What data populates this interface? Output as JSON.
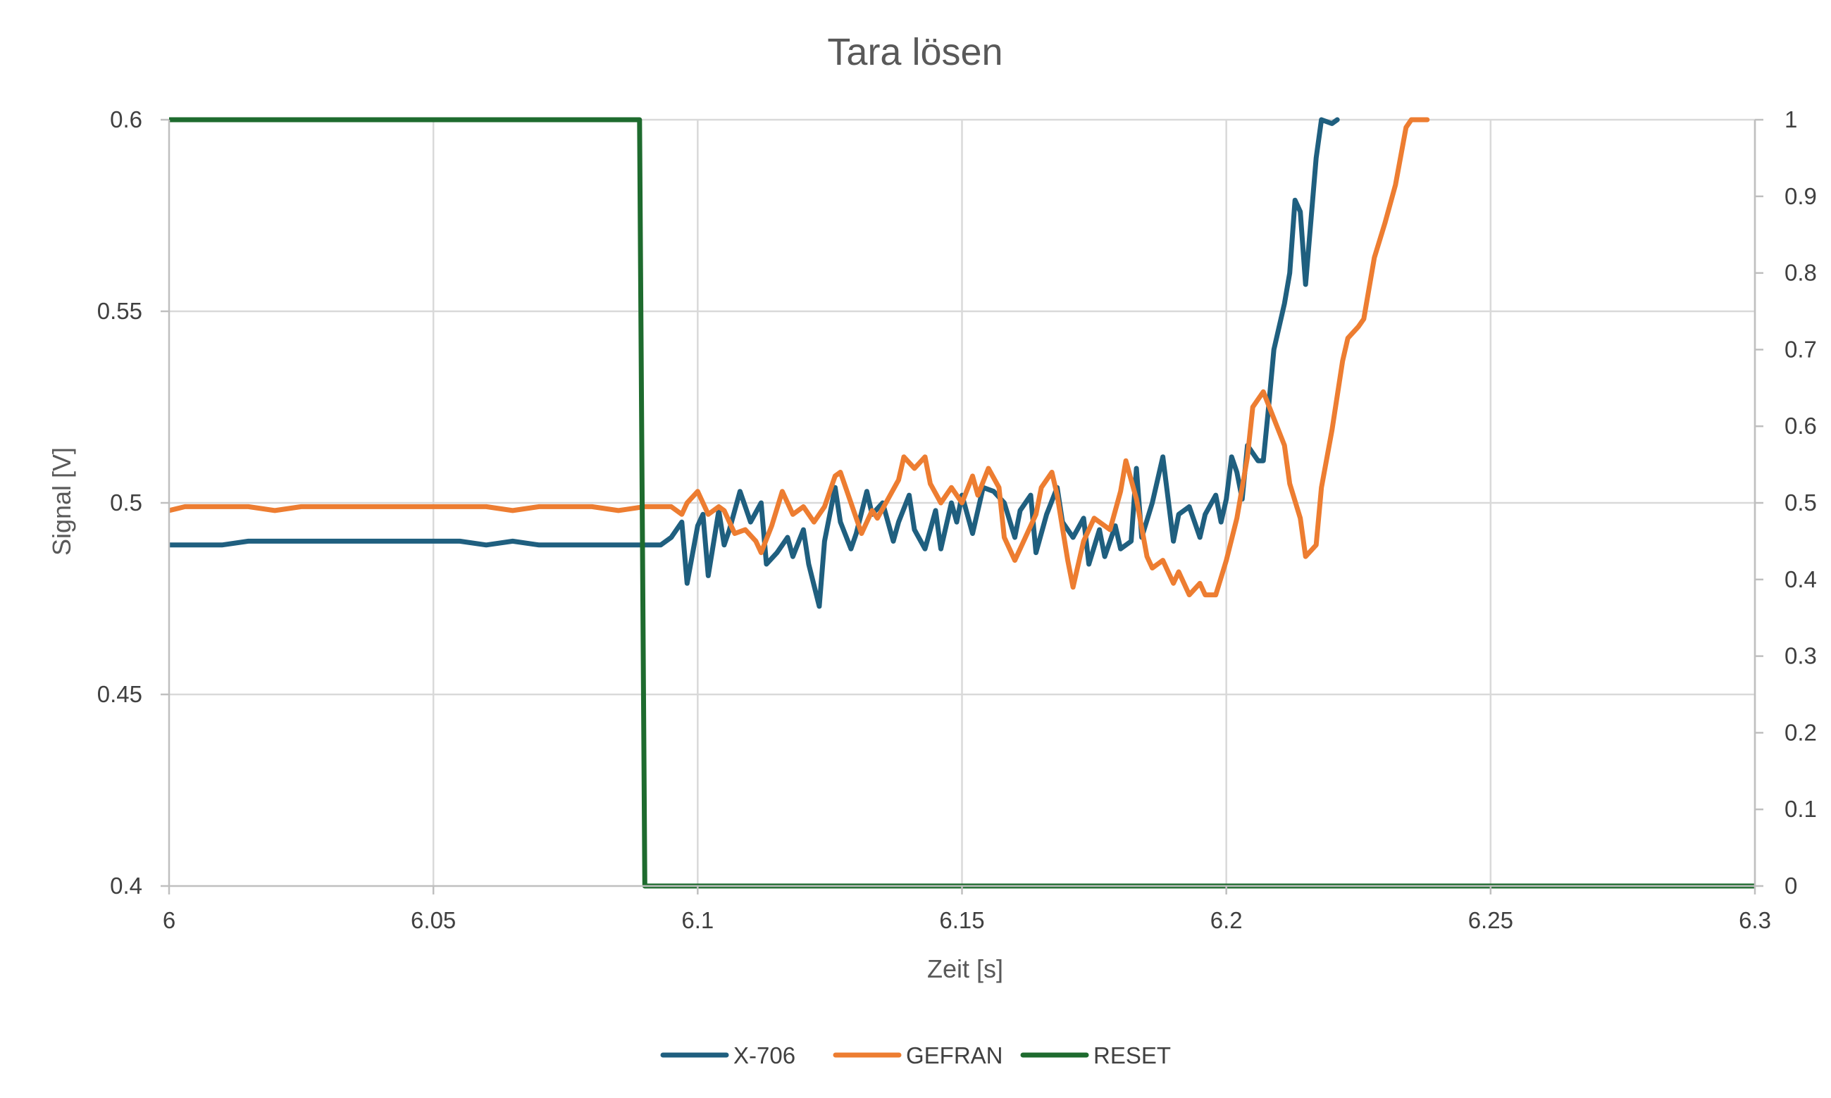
{
  "chart_data": {
    "type": "line",
    "title": "Tara lösen",
    "xlabel": "Zeit [s]",
    "ylabel": "Signal [V]",
    "y2label": "",
    "xlim": [
      6,
      6.3
    ],
    "ylim": [
      0.4,
      0.6
    ],
    "y2lim": [
      0,
      1
    ],
    "x_ticks": [
      "6",
      "6.05",
      "6.1",
      "6.15",
      "6.2",
      "6.25",
      "6.3"
    ],
    "y_ticks": [
      "0.4",
      "0.45",
      "0.5",
      "0.55",
      "0.6"
    ],
    "y2_ticks": [
      "0",
      "0.1",
      "0.2",
      "0.3",
      "0.4",
      "0.5",
      "0.6",
      "0.7",
      "0.8",
      "0.9",
      "1"
    ],
    "grid": true,
    "legend_position": "bottom",
    "series": [
      {
        "name": "X-706",
        "axis": "left",
        "color": "#1f5f7f",
        "points": [
          [
            6.0,
            0.489
          ],
          [
            6.005,
            0.489
          ],
          [
            6.01,
            0.489
          ],
          [
            6.015,
            0.49
          ],
          [
            6.02,
            0.49
          ],
          [
            6.025,
            0.49
          ],
          [
            6.03,
            0.49
          ],
          [
            6.035,
            0.49
          ],
          [
            6.04,
            0.49
          ],
          [
            6.045,
            0.49
          ],
          [
            6.05,
            0.49
          ],
          [
            6.055,
            0.49
          ],
          [
            6.06,
            0.489
          ],
          [
            6.065,
            0.49
          ],
          [
            6.07,
            0.489
          ],
          [
            6.075,
            0.489
          ],
          [
            6.08,
            0.489
          ],
          [
            6.085,
            0.489
          ],
          [
            6.09,
            0.489
          ],
          [
            6.093,
            0.489
          ],
          [
            6.095,
            0.491
          ],
          [
            6.097,
            0.495
          ],
          [
            6.098,
            0.479
          ],
          [
            6.1,
            0.494
          ],
          [
            6.101,
            0.497
          ],
          [
            6.102,
            0.481
          ],
          [
            6.104,
            0.498
          ],
          [
            6.105,
            0.489
          ],
          [
            6.106,
            0.493
          ],
          [
            6.108,
            0.503
          ],
          [
            6.11,
            0.495
          ],
          [
            6.112,
            0.5
          ],
          [
            6.113,
            0.484
          ],
          [
            6.115,
            0.487
          ],
          [
            6.117,
            0.491
          ],
          [
            6.118,
            0.486
          ],
          [
            6.12,
            0.493
          ],
          [
            6.121,
            0.484
          ],
          [
            6.123,
            0.473
          ],
          [
            6.124,
            0.49
          ],
          [
            6.126,
            0.504
          ],
          [
            6.127,
            0.495
          ],
          [
            6.129,
            0.488
          ],
          [
            6.13,
            0.492
          ],
          [
            6.132,
            0.503
          ],
          [
            6.133,
            0.497
          ],
          [
            6.135,
            0.5
          ],
          [
            6.137,
            0.49
          ],
          [
            6.138,
            0.495
          ],
          [
            6.14,
            0.502
          ],
          [
            6.141,
            0.493
          ],
          [
            6.143,
            0.488
          ],
          [
            6.145,
            0.498
          ],
          [
            6.146,
            0.488
          ],
          [
            6.148,
            0.5
          ],
          [
            6.149,
            0.495
          ],
          [
            6.15,
            0.502
          ],
          [
            6.152,
            0.492
          ],
          [
            6.154,
            0.504
          ],
          [
            6.156,
            0.503
          ],
          [
            6.158,
            0.5
          ],
          [
            6.16,
            0.491
          ],
          [
            6.161,
            0.498
          ],
          [
            6.163,
            0.502
          ],
          [
            6.164,
            0.487
          ],
          [
            6.166,
            0.497
          ],
          [
            6.168,
            0.504
          ],
          [
            6.169,
            0.495
          ],
          [
            6.171,
            0.491
          ],
          [
            6.173,
            0.496
          ],
          [
            6.174,
            0.484
          ],
          [
            6.176,
            0.493
          ],
          [
            6.177,
            0.486
          ],
          [
            6.179,
            0.494
          ],
          [
            6.18,
            0.488
          ],
          [
            6.182,
            0.49
          ],
          [
            6.183,
            0.509
          ],
          [
            6.184,
            0.491
          ],
          [
            6.186,
            0.5
          ],
          [
            6.188,
            0.512
          ],
          [
            6.19,
            0.49
          ],
          [
            6.191,
            0.497
          ],
          [
            6.193,
            0.499
          ],
          [
            6.195,
            0.491
          ],
          [
            6.196,
            0.497
          ],
          [
            6.198,
            0.502
          ],
          [
            6.199,
            0.495
          ],
          [
            6.2,
            0.501
          ],
          [
            6.201,
            0.512
          ],
          [
            6.202,
            0.508
          ],
          [
            6.203,
            0.501
          ],
          [
            6.204,
            0.515
          ],
          [
            6.206,
            0.511
          ],
          [
            6.207,
            0.511
          ],
          [
            6.208,
            0.525
          ],
          [
            6.209,
            0.54
          ],
          [
            6.211,
            0.552
          ],
          [
            6.212,
            0.56
          ],
          [
            6.213,
            0.579
          ],
          [
            6.214,
            0.576
          ],
          [
            6.215,
            0.557
          ],
          [
            6.217,
            0.59
          ],
          [
            6.218,
            0.6
          ],
          [
            6.22,
            0.599
          ],
          [
            6.221,
            0.6
          ]
        ]
      },
      {
        "name": "GEFRAN",
        "axis": "left",
        "color": "#ed7d31",
        "points": [
          [
            6.0,
            0.498
          ],
          [
            6.003,
            0.499
          ],
          [
            6.01,
            0.499
          ],
          [
            6.015,
            0.499
          ],
          [
            6.02,
            0.498
          ],
          [
            6.025,
            0.499
          ],
          [
            6.03,
            0.499
          ],
          [
            6.035,
            0.499
          ],
          [
            6.04,
            0.499
          ],
          [
            6.045,
            0.499
          ],
          [
            6.05,
            0.499
          ],
          [
            6.055,
            0.499
          ],
          [
            6.06,
            0.499
          ],
          [
            6.065,
            0.498
          ],
          [
            6.07,
            0.499
          ],
          [
            6.075,
            0.499
          ],
          [
            6.08,
            0.499
          ],
          [
            6.085,
            0.498
          ],
          [
            6.09,
            0.499
          ],
          [
            6.093,
            0.499
          ],
          [
            6.095,
            0.499
          ],
          [
            6.097,
            0.497
          ],
          [
            6.098,
            0.5
          ],
          [
            6.1,
            0.503
          ],
          [
            6.102,
            0.497
          ],
          [
            6.104,
            0.499
          ],
          [
            6.105,
            0.498
          ],
          [
            6.107,
            0.492
          ],
          [
            6.109,
            0.493
          ],
          [
            6.111,
            0.49
          ],
          [
            6.112,
            0.487
          ],
          [
            6.114,
            0.494
          ],
          [
            6.116,
            0.503
          ],
          [
            6.118,
            0.497
          ],
          [
            6.12,
            0.499
          ],
          [
            6.122,
            0.495
          ],
          [
            6.124,
            0.499
          ],
          [
            6.126,
            0.507
          ],
          [
            6.127,
            0.508
          ],
          [
            6.129,
            0.5
          ],
          [
            6.131,
            0.492
          ],
          [
            6.133,
            0.498
          ],
          [
            6.134,
            0.496
          ],
          [
            6.136,
            0.501
          ],
          [
            6.138,
            0.506
          ],
          [
            6.139,
            0.512
          ],
          [
            6.141,
            0.509
          ],
          [
            6.143,
            0.512
          ],
          [
            6.144,
            0.505
          ],
          [
            6.146,
            0.5
          ],
          [
            6.148,
            0.504
          ],
          [
            6.15,
            0.5
          ],
          [
            6.152,
            0.507
          ],
          [
            6.153,
            0.502
          ],
          [
            6.155,
            0.509
          ],
          [
            6.157,
            0.504
          ],
          [
            6.158,
            0.491
          ],
          [
            6.16,
            0.485
          ],
          [
            6.162,
            0.491
          ],
          [
            6.164,
            0.497
          ],
          [
            6.165,
            0.504
          ],
          [
            6.167,
            0.508
          ],
          [
            6.168,
            0.502
          ],
          [
            6.17,
            0.485
          ],
          [
            6.171,
            0.478
          ],
          [
            6.173,
            0.49
          ],
          [
            6.175,
            0.496
          ],
          [
            6.176,
            0.495
          ],
          [
            6.178,
            0.493
          ],
          [
            6.18,
            0.503
          ],
          [
            6.181,
            0.511
          ],
          [
            6.183,
            0.501
          ],
          [
            6.185,
            0.486
          ],
          [
            6.186,
            0.483
          ],
          [
            6.188,
            0.485
          ],
          [
            6.19,
            0.479
          ],
          [
            6.191,
            0.482
          ],
          [
            6.193,
            0.476
          ],
          [
            6.195,
            0.479
          ],
          [
            6.196,
            0.476
          ],
          [
            6.198,
            0.476
          ],
          [
            6.2,
            0.485
          ],
          [
            6.202,
            0.496
          ],
          [
            6.204,
            0.512
          ],
          [
            6.205,
            0.525
          ],
          [
            6.207,
            0.529
          ],
          [
            6.209,
            0.522
          ],
          [
            6.211,
            0.515
          ],
          [
            6.212,
            0.505
          ],
          [
            6.214,
            0.496
          ],
          [
            6.215,
            0.486
          ],
          [
            6.217,
            0.489
          ],
          [
            6.218,
            0.504
          ],
          [
            6.22,
            0.519
          ],
          [
            6.222,
            0.537
          ],
          [
            6.223,
            0.543
          ],
          [
            6.225,
            0.546
          ],
          [
            6.226,
            0.548
          ],
          [
            6.228,
            0.564
          ],
          [
            6.23,
            0.573
          ],
          [
            6.232,
            0.583
          ],
          [
            6.234,
            0.598
          ],
          [
            6.235,
            0.6
          ],
          [
            6.237,
            0.6
          ],
          [
            6.238,
            0.6
          ]
        ]
      },
      {
        "name": "RESET",
        "axis": "right",
        "color": "#1e6b2e",
        "points": [
          [
            6.0,
            1
          ],
          [
            6.089,
            1
          ],
          [
            6.09,
            0
          ],
          [
            6.3,
            0
          ]
        ]
      }
    ]
  }
}
